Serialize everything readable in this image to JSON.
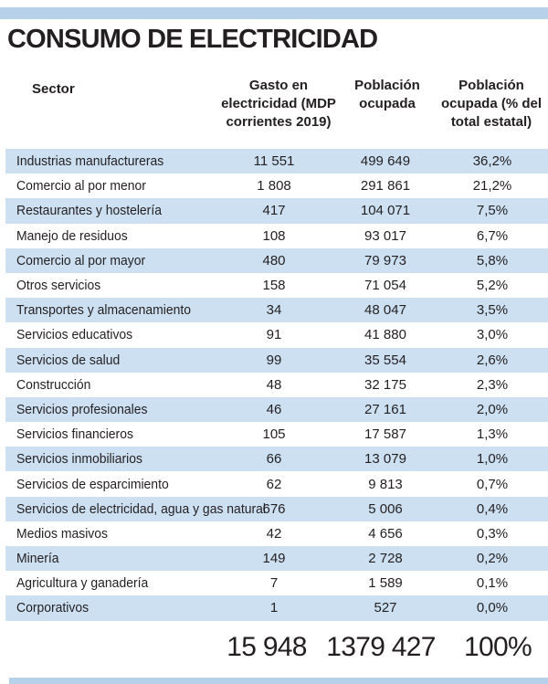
{
  "title": "CONSUMO DE ELECTRICIDAD",
  "accent": {
    "bar_color": "#b7d1ea",
    "row_stripe_color": "#cde0f2",
    "text_color": "#231f20"
  },
  "table": {
    "headers": {
      "sector": "Sector",
      "gasto_lines": [
        "Gasto en",
        "electricidad (MDP",
        "corrientes 2019)"
      ],
      "poblacion_lines": [
        "Población",
        "ocupada"
      ],
      "pct_lines": [
        "Población",
        "ocupada (% del",
        "total estatal)"
      ]
    },
    "rows": [
      {
        "sector": "Industrias manufactureras",
        "gasto": "11 551",
        "poblacion": "499 649",
        "pct": "36,2%"
      },
      {
        "sector": "Comercio al por menor",
        "gasto": "1 808",
        "poblacion": "291 861",
        "pct": "21,2%"
      },
      {
        "sector": "Restaurantes y hostelería",
        "gasto": "417",
        "poblacion": "104 071",
        "pct": "7,5%"
      },
      {
        "sector": "Manejo de residuos",
        "gasto": "108",
        "poblacion": "93 017",
        "pct": "6,7%"
      },
      {
        "sector": "Comercio al por mayor",
        "gasto": "480",
        "poblacion": "79 973",
        "pct": "5,8%"
      },
      {
        "sector": "Otros servicios",
        "gasto": "158",
        "poblacion": "71 054",
        "pct": "5,2%"
      },
      {
        "sector": "Transportes y almacenamiento",
        "gasto": "34",
        "poblacion": "48 047",
        "pct": "3,5%"
      },
      {
        "sector": "Servicios educativos",
        "gasto": "91",
        "poblacion": "41 880",
        "pct": "3,0%"
      },
      {
        "sector": "Servicios de salud",
        "gasto": "99",
        "poblacion": "35 554",
        "pct": "2,6%"
      },
      {
        "sector": "Construcción",
        "gasto": "48",
        "poblacion": "32 175",
        "pct": "2,3%"
      },
      {
        "sector": "Servicios profesionales",
        "gasto": "46",
        "poblacion": "27 161",
        "pct": "2,0%"
      },
      {
        "sector": "Servicios financieros",
        "gasto": "105",
        "poblacion": "17 587",
        "pct": "1,3%"
      },
      {
        "sector": "Servicios inmobiliarios",
        "gasto": "66",
        "poblacion": "13 079",
        "pct": "1,0%"
      },
      {
        "sector": "Servicios de esparcimiento",
        "gasto": "62",
        "poblacion": "9 813",
        "pct": "0,7%"
      },
      {
        "sector": "Servicios de electricidad, agua y gas natural",
        "gasto": "676",
        "poblacion": "5 006",
        "pct": "0,4%"
      },
      {
        "sector": "Medios masivos",
        "gasto": "42",
        "poblacion": "4 656",
        "pct": "0,3%"
      },
      {
        "sector": "Minería",
        "gasto": "149",
        "poblacion": "2 728",
        "pct": "0,2%"
      },
      {
        "sector": "Agricultura y ganadería",
        "gasto": "7",
        "poblacion": "1 589",
        "pct": "0,1%"
      },
      {
        "sector": "Corporativos",
        "gasto": "1",
        "poblacion": "527",
        "pct": "0,0%"
      }
    ],
    "totals": {
      "gasto": "15 948",
      "poblacion": "1379 427",
      "pct": "100%"
    }
  },
  "chart_data": {
    "type": "table",
    "title": "CONSUMO DE ELECTRICIDAD",
    "columns": [
      "Sector",
      "Gasto en electricidad (MDP corrientes 2019)",
      "Población ocupada",
      "Población ocupada (% del total estatal)"
    ],
    "rows": [
      [
        "Industrias manufactureras",
        11551,
        499649,
        36.2
      ],
      [
        "Comercio al por menor",
        1808,
        291861,
        21.2
      ],
      [
        "Restaurantes y hostelería",
        417,
        104071,
        7.5
      ],
      [
        "Manejo de residuos",
        108,
        93017,
        6.7
      ],
      [
        "Comercio al por mayor",
        480,
        79973,
        5.8
      ],
      [
        "Otros servicios",
        158,
        71054,
        5.2
      ],
      [
        "Transportes y almacenamiento",
        34,
        48047,
        3.5
      ],
      [
        "Servicios educativos",
        91,
        41880,
        3.0
      ],
      [
        "Servicios de salud",
        99,
        35554,
        2.6
      ],
      [
        "Construcción",
        48,
        32175,
        2.3
      ],
      [
        "Servicios profesionales",
        46,
        27161,
        2.0
      ],
      [
        "Servicios financieros",
        105,
        17587,
        1.3
      ],
      [
        "Servicios inmobiliarios",
        66,
        13079,
        1.0
      ],
      [
        "Servicios de esparcimiento",
        62,
        9813,
        0.7
      ],
      [
        "Servicios de electricidad, agua y gas natural",
        676,
        5006,
        0.4
      ],
      [
        "Medios masivos",
        42,
        4656,
        0.3
      ],
      [
        "Minería",
        149,
        2728,
        0.2
      ],
      [
        "Agricultura y ganadería",
        7,
        1589,
        0.1
      ],
      [
        "Corporativos",
        1,
        527,
        0.0
      ]
    ],
    "totals": [
      15948,
      1379427,
      100
    ],
    "layout": {
      "striped_rows": true,
      "stripe_on_odd_rows_1_based": true
    }
  }
}
